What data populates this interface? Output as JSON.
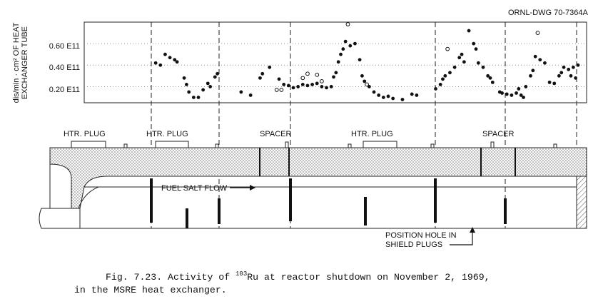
{
  "drawing_number": "ORNL-DWG 70-7364A",
  "chart_data": {
    "type": "scatter",
    "ylabel_lines": [
      "dis/min · cm² OF HEAT",
      "EXCHANGER TUBE"
    ],
    "ytick_labels": [
      "0.60 E11",
      "0.40 E11",
      "0.20 E11"
    ],
    "yticks": [
      0.6,
      0.4,
      0.2
    ],
    "ylim": [
      0.05,
      0.8
    ],
    "xlim": [
      0,
      100
    ],
    "grid": true,
    "points_filled": [
      [
        11,
        0.42
      ],
      [
        12,
        0.4
      ],
      [
        13,
        0.5
      ],
      [
        14,
        0.47
      ],
      [
        15,
        0.45
      ],
      [
        15.5,
        0.43
      ],
      [
        17,
        0.28
      ],
      [
        17.5,
        0.22
      ],
      [
        18,
        0.15
      ],
      [
        19,
        0.1
      ],
      [
        20,
        0.1
      ],
      [
        21,
        0.17
      ],
      [
        22,
        0.23
      ],
      [
        22.5,
        0.2
      ],
      [
        23.5,
        0.29
      ],
      [
        24,
        0.32
      ],
      [
        29,
        0.15
      ],
      [
        31,
        0.12
      ],
      [
        33,
        0.28
      ],
      [
        33.5,
        0.32
      ],
      [
        35,
        0.38
      ],
      [
        37,
        0.27
      ],
      [
        38,
        0.22
      ],
      [
        39,
        0.21
      ],
      [
        40,
        0.19
      ],
      [
        41,
        0.2
      ],
      [
        42,
        0.22
      ],
      [
        43,
        0.21
      ],
      [
        44,
        0.22
      ],
      [
        45,
        0.23
      ],
      [
        46,
        0.2
      ],
      [
        47,
        0.19
      ],
      [
        48,
        0.2
      ],
      [
        48.5,
        0.29
      ],
      [
        49,
        0.33
      ],
      [
        49.5,
        0.43
      ],
      [
        50,
        0.5
      ],
      [
        50.5,
        0.55
      ],
      [
        51,
        0.62
      ],
      [
        52,
        0.58
      ],
      [
        53,
        0.6
      ],
      [
        54,
        0.45
      ],
      [
        54.5,
        0.3
      ],
      [
        55,
        0.25
      ],
      [
        56,
        0.2
      ],
      [
        57,
        0.15
      ],
      [
        58,
        0.12
      ],
      [
        59,
        0.1
      ],
      [
        60,
        0.11
      ],
      [
        61,
        0.09
      ],
      [
        63,
        0.08
      ],
      [
        65,
        0.13
      ],
      [
        66,
        0.12
      ],
      [
        70,
        0.18
      ],
      [
        71,
        0.22
      ],
      [
        71.5,
        0.27
      ],
      [
        72,
        0.3
      ],
      [
        73,
        0.33
      ],
      [
        74,
        0.38
      ],
      [
        75,
        0.47
      ],
      [
        75.5,
        0.5
      ],
      [
        76,
        0.43
      ],
      [
        77,
        0.72
      ],
      [
        78,
        0.6
      ],
      [
        78.5,
        0.55
      ],
      [
        79,
        0.42
      ],
      [
        80,
        0.38
      ],
      [
        81,
        0.3
      ],
      [
        81.5,
        0.28
      ],
      [
        82,
        0.24
      ],
      [
        83.5,
        0.15
      ],
      [
        84,
        0.14
      ],
      [
        85,
        0.13
      ],
      [
        86,
        0.12
      ],
      [
        87,
        0.14
      ],
      [
        87.5,
        0.18
      ],
      [
        88,
        0.12
      ],
      [
        88.5,
        0.1
      ],
      [
        89,
        0.2
      ],
      [
        90,
        0.3
      ],
      [
        90.5,
        0.35
      ],
      [
        91,
        0.48
      ],
      [
        92,
        0.45
      ],
      [
        93,
        0.42
      ],
      [
        94,
        0.24
      ],
      [
        95,
        0.23
      ],
      [
        96,
        0.3
      ],
      [
        96.5,
        0.33
      ],
      [
        97,
        0.38
      ],
      [
        98,
        0.36
      ],
      [
        98.5,
        0.3
      ],
      [
        99,
        0.38
      ],
      [
        99.5,
        0.28
      ],
      [
        100,
        0.4
      ]
    ],
    "points_open": [
      [
        36.5,
        0.17
      ],
      [
        37.5,
        0.17
      ],
      [
        42,
        0.28
      ],
      [
        43,
        0.32
      ],
      [
        45,
        0.31
      ],
      [
        46,
        0.25
      ],
      [
        51.5,
        0.78
      ],
      [
        55.5,
        0.22
      ],
      [
        72.5,
        0.55
      ],
      [
        91.5,
        0.7
      ]
    ]
  },
  "section_labels": [
    "HTR. PLUG",
    "HTR. PLUG",
    "SPACER",
    "HTR. PLUG",
    "SPACER"
  ],
  "flow_label": "FUEL SALT FLOW",
  "position_note": [
    "POSITION HOLE IN",
    "SHIELD PLUGS"
  ],
  "caption": {
    "prefix": "Fig. 7.23.  Activity of ",
    "superscript": "103",
    "suffix": "Ru at reactor shutdown on November 2, 1969,",
    "line2": "in the MSRE heat exchanger."
  }
}
